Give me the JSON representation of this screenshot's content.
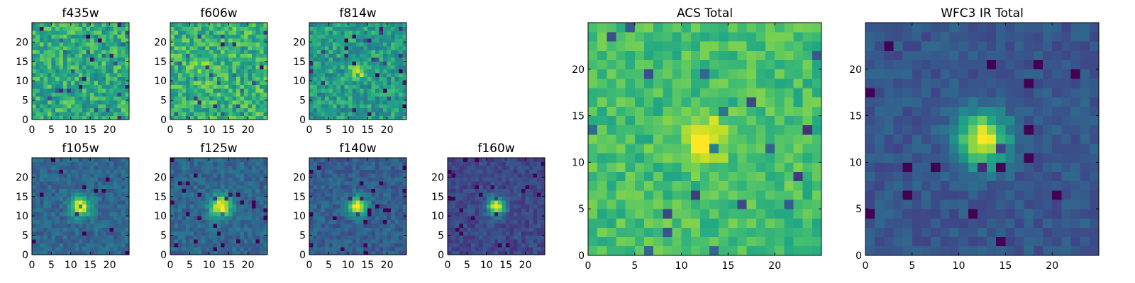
{
  "chart_data": [
    {
      "type": "heatmap",
      "title": "f435w",
      "xticks": [
        0,
        5,
        10,
        15,
        20
      ],
      "yticks": [
        0,
        5,
        10,
        15,
        20
      ],
      "xlim": [
        0,
        25
      ],
      "ylim": [
        0,
        25
      ],
      "colormap": "viridis",
      "resolution": 1,
      "source": {
        "x": 12.5,
        "y": 12.5,
        "amplitude": 0.0,
        "sigma": 2.5
      },
      "background": 0.62,
      "noise": 0.18,
      "floor": 0.0,
      "seed": 11
    },
    {
      "type": "heatmap",
      "title": "f606w",
      "xticks": [
        0,
        5,
        10,
        15,
        20
      ],
      "yticks": [
        0,
        5,
        10,
        15,
        20
      ],
      "xlim": [
        0,
        25
      ],
      "ylim": [
        0,
        25
      ],
      "colormap": "viridis",
      "resolution": 1,
      "source": {
        "x": 9,
        "y": 13,
        "amplitude": 0.1,
        "sigma": 2.0
      },
      "background": 0.65,
      "noise": 0.18,
      "floor": 0.0,
      "seed": 23
    },
    {
      "type": "heatmap",
      "title": "f814w",
      "xticks": [
        0,
        5,
        10,
        15,
        20
      ],
      "yticks": [
        0,
        5,
        10,
        15,
        20
      ],
      "xlim": [
        0,
        25
      ],
      "ylim": [
        0,
        25
      ],
      "colormap": "viridis",
      "resolution": 1,
      "source": {
        "x": 12.5,
        "y": 12.5,
        "amplitude": 0.45,
        "sigma": 1.3
      },
      "background": 0.55,
      "noise": 0.16,
      "floor": 0.0,
      "seed": 37
    },
    {
      "type": "heatmap",
      "title": "f105w",
      "xticks": [
        0,
        5,
        10,
        15,
        20
      ],
      "yticks": [
        0,
        5,
        10,
        15,
        20
      ],
      "xlim": [
        0,
        25
      ],
      "ylim": [
        0,
        25
      ],
      "colormap": "viridis",
      "resolution": 1,
      "source": {
        "x": 12.5,
        "y": 12.5,
        "amplitude": 0.7,
        "sigma": 1.8
      },
      "background": 0.33,
      "noise": 0.09,
      "floor": 0.0,
      "seed": 41
    },
    {
      "type": "heatmap",
      "title": "f125w",
      "xticks": [
        0,
        5,
        10,
        15,
        20
      ],
      "yticks": [
        0,
        5,
        10,
        15,
        20
      ],
      "xlim": [
        0,
        25
      ],
      "ylim": [
        0,
        25
      ],
      "colormap": "viridis",
      "resolution": 1,
      "source": {
        "x": 13,
        "y": 12.5,
        "amplitude": 0.7,
        "sigma": 2.0
      },
      "background": 0.33,
      "noise": 0.09,
      "floor": 0.0,
      "seed": 53
    },
    {
      "type": "heatmap",
      "title": "f140w",
      "xticks": [
        0,
        5,
        10,
        15,
        20
      ],
      "yticks": [
        0,
        5,
        10,
        15,
        20
      ],
      "xlim": [
        0,
        25
      ],
      "ylim": [
        0,
        25
      ],
      "colormap": "viridis",
      "resolution": 1,
      "source": {
        "x": 12.5,
        "y": 12.5,
        "amplitude": 0.72,
        "sigma": 1.7
      },
      "background": 0.3,
      "noise": 0.09,
      "floor": 0.0,
      "seed": 67
    },
    {
      "type": "heatmap",
      "title": "f160w",
      "xticks": [
        0,
        5,
        10,
        15,
        20
      ],
      "yticks": [
        0,
        5,
        10,
        15,
        20
      ],
      "xlim": [
        0,
        25
      ],
      "ylim": [
        0,
        25
      ],
      "colormap": "viridis",
      "resolution": 1,
      "source": {
        "x": 12.5,
        "y": 12.5,
        "amplitude": 0.78,
        "sigma": 1.6
      },
      "background": 0.22,
      "noise": 0.08,
      "floor": 0.0,
      "seed": 79
    },
    {
      "type": "heatmap",
      "title": "ACS Total",
      "xticks": [
        0,
        5,
        10,
        15,
        20
      ],
      "yticks": [
        0,
        5,
        10,
        15,
        20
      ],
      "xlim": [
        0,
        25
      ],
      "ylim": [
        0,
        25
      ],
      "colormap": "viridis",
      "resolution": 1,
      "source": {
        "x": 12.5,
        "y": 12.5,
        "amplitude": 0.38,
        "sigma": 1.7
      },
      "background": 0.7,
      "noise": 0.11,
      "floor": 0.0,
      "seed": 97
    },
    {
      "type": "heatmap",
      "title": "WFC3 IR Total",
      "xticks": [
        0,
        5,
        10,
        15,
        20
      ],
      "yticks": [
        0,
        5,
        10,
        15,
        20
      ],
      "xlim": [
        0,
        25
      ],
      "ylim": [
        0,
        25
      ],
      "colormap": "viridis",
      "resolution": 1,
      "source": {
        "x": 12.5,
        "y": 12.5,
        "amplitude": 0.72,
        "sigma": 2.0
      },
      "background": 0.27,
      "noise": 0.07,
      "floor": 0.0,
      "seed": 113
    }
  ]
}
